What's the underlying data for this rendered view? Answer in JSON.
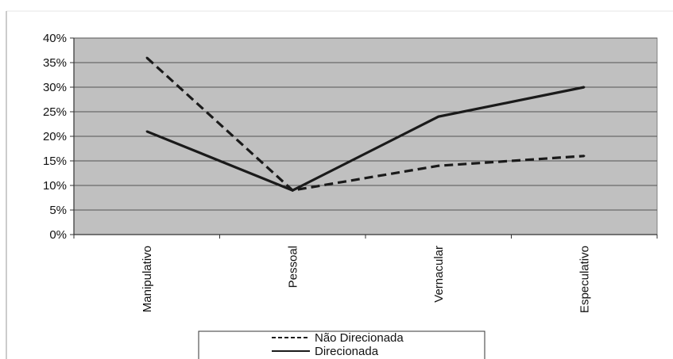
{
  "chart_data": {
    "type": "line",
    "title": "",
    "xlabel": "",
    "ylabel": "",
    "categories": [
      "Manipulativo",
      "Pessoal",
      "Vernacular",
      "Especulativo"
    ],
    "series": [
      {
        "name": "Não Direcionada",
        "values": [
          36,
          9,
          14,
          16
        ],
        "style": "dashed",
        "color": "#1a1a1a"
      },
      {
        "name": "Direcionada",
        "values": [
          21,
          9,
          24,
          30
        ],
        "style": "solid",
        "color": "#1a1a1a"
      }
    ],
    "ylim": [
      0,
      40
    ],
    "y_ticks": [
      0,
      5,
      10,
      15,
      20,
      25,
      30,
      35,
      40
    ],
    "y_tick_labels": [
      "0%",
      "5%",
      "10%",
      "15%",
      "20%",
      "25%",
      "30%",
      "35%",
      "40%"
    ],
    "grid": true,
    "plot_background": "#c0c0c0",
    "legend_position": "bottom"
  }
}
